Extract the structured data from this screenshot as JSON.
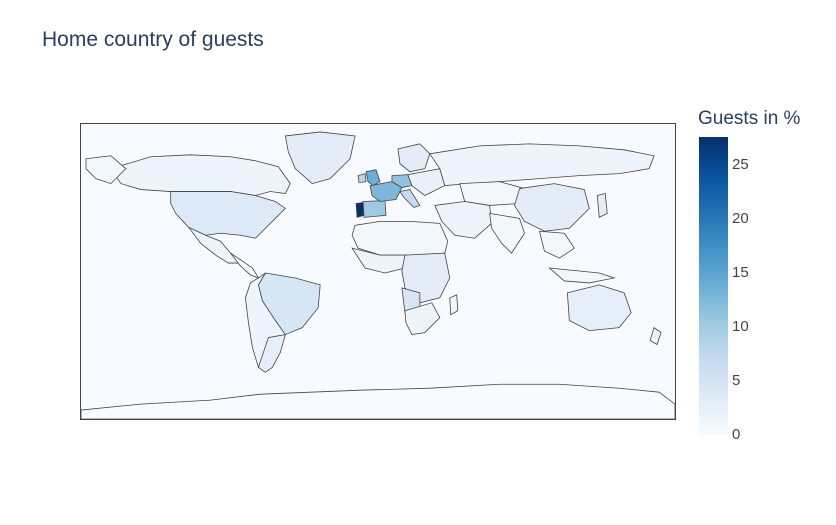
{
  "chart_data": {
    "type": "choropleth",
    "title": "Home country of guests",
    "projection": "equirectangular",
    "colorscale": "Blues",
    "colorbar": {
      "title": "Guests in %",
      "range": [
        0,
        27.5
      ],
      "ticks": [
        "0",
        "5",
        "10",
        "15",
        "20",
        "25"
      ]
    },
    "regions": [
      {
        "country": "Portugal",
        "value": 27.5
      },
      {
        "country": "United Kingdom",
        "value": 10.2
      },
      {
        "country": "France",
        "value": 8.7
      },
      {
        "country": "Spain",
        "value": 7.2
      },
      {
        "country": "Germany",
        "value": 6.1
      },
      {
        "country": "Italy",
        "value": 3.2
      },
      {
        "country": "Ireland",
        "value": 2.8
      },
      {
        "country": "Belgium",
        "value": 2.0
      },
      {
        "country": "Brazil",
        "value": 1.9
      },
      {
        "country": "Netherlands",
        "value": 1.8
      },
      {
        "country": "United States",
        "value": 1.7
      },
      {
        "country": "Switzerland",
        "value": 1.5
      },
      {
        "country": "China",
        "value": 0.9
      },
      {
        "country": "Austria",
        "value": 0.8
      },
      {
        "country": "Sweden",
        "value": 0.8
      },
      {
        "country": "Australia",
        "value": 0.4
      },
      {
        "country": "Angola",
        "value": 0.4
      },
      {
        "country": "Russia",
        "value": 0.6
      },
      {
        "country": "Canada",
        "value": 0.2
      },
      {
        "country": "Greenland",
        "value": 0.1
      },
      {
        "country": "Antarctica",
        "value": 0.0
      }
    ]
  },
  "colors": {
    "ocean": "#f7fbff",
    "border": "#444444",
    "low": "#f7fbff",
    "high": "#08306b"
  }
}
